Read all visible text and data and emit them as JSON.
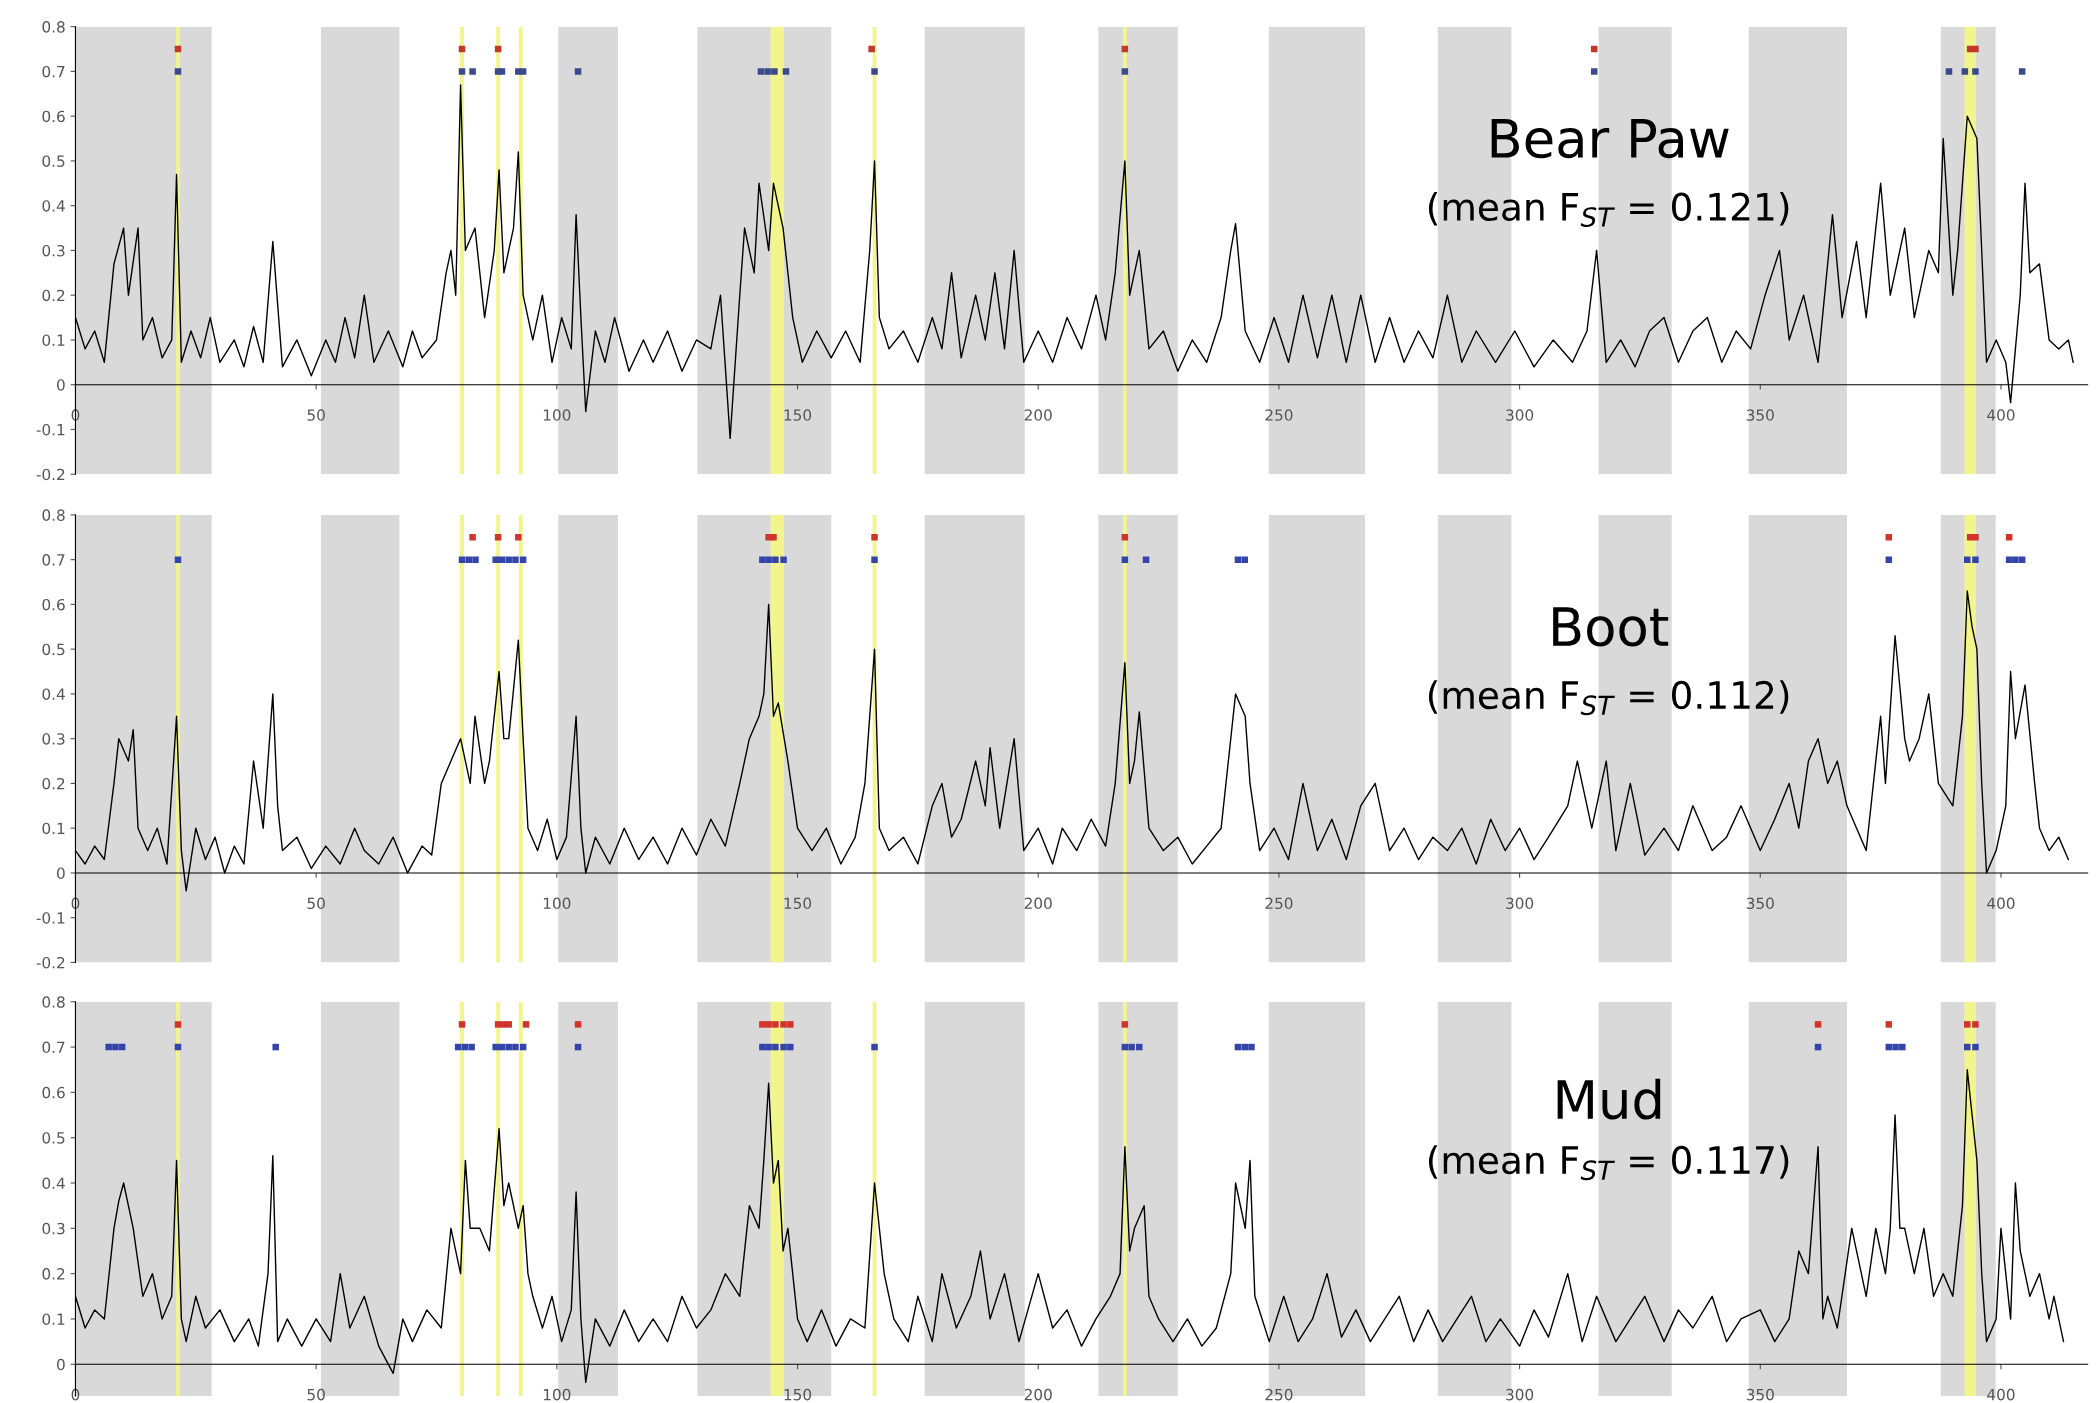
{
  "chart_data": [
    {
      "type": "line",
      "annotations": [
        "Bear Paw",
        "(mean F$_{ST}$ = 0.121)"
      ],
      "xlim": [
        0,
        418
      ],
      "ylim": [
        -0.2,
        0.8
      ],
      "xticks": [
        0,
        50,
        100,
        150,
        200,
        250,
        300,
        350,
        400
      ],
      "yticks": [
        -0.2,
        -0.1,
        0,
        0.1,
        0.2,
        0.3,
        0.4,
        0.5,
        0.6,
        0.7,
        0.8
      ],
      "grid": false,
      "legend": false,
      "bands": [
        {
          "axis": "x",
          "from": 0,
          "to": 28.3,
          "color": "#d9d9d9"
        },
        {
          "axis": "x",
          "from": 51,
          "to": 67.3,
          "color": "#d9d9d9"
        },
        {
          "axis": "x",
          "from": 100.3,
          "to": 112.7,
          "color": "#d9d9d9"
        },
        {
          "axis": "x",
          "from": 129.2,
          "to": 157,
          "color": "#d9d9d9"
        },
        {
          "axis": "x",
          "from": 176.4,
          "to": 197.2,
          "color": "#d9d9d9"
        },
        {
          "axis": "x",
          "from": 212.5,
          "to": 229,
          "color": "#d9d9d9"
        },
        {
          "axis": "x",
          "from": 247.9,
          "to": 267.9,
          "color": "#d9d9d9"
        },
        {
          "axis": "x",
          "from": 283,
          "to": 298.3,
          "color": "#d9d9d9"
        },
        {
          "axis": "x",
          "from": 316.4,
          "to": 331.6,
          "color": "#d9d9d9"
        },
        {
          "axis": "x",
          "from": 347.6,
          "to": 368,
          "color": "#d9d9d9"
        },
        {
          "axis": "x",
          "from": 387.5,
          "to": 398.9,
          "color": "#d9d9d9"
        },
        {
          "axis": "x",
          "from": 20.9,
          "to": 21.7,
          "color": "#f2f58c"
        },
        {
          "axis": "x",
          "from": 79.9,
          "to": 80.7,
          "color": "#f2f58c"
        },
        {
          "axis": "x",
          "from": 87.4,
          "to": 88.2,
          "color": "#f2f58c"
        },
        {
          "axis": "x",
          "from": 92.1,
          "to": 92.9,
          "color": "#f2f58c"
        },
        {
          "axis": "x",
          "from": 144.4,
          "to": 147.2,
          "color": "#f2f58c"
        },
        {
          "axis": "x",
          "from": 165.6,
          "to": 166.4,
          "color": "#f2f58c"
        },
        {
          "axis": "x",
          "from": 217.6,
          "to": 218.4,
          "color": "#f2f58c"
        },
        {
          "axis": "x",
          "from": 392.4,
          "to": 394.8,
          "color": "#f2f58c"
        }
      ],
      "series": [
        {
          "type": "line",
          "color": "#000000",
          "marker": "none",
          "line_style": "solid",
          "x": [
            0,
            2,
            4,
            6,
            8,
            10,
            11,
            13,
            14,
            16,
            18,
            20,
            21,
            22,
            24,
            26,
            28,
            30,
            33,
            35,
            37,
            39,
            41,
            43,
            46,
            49,
            52,
            54,
            56,
            58,
            60,
            62,
            65,
            68,
            70,
            72,
            75,
            77,
            78,
            79,
            80,
            81,
            83,
            85,
            87,
            88,
            89,
            91,
            92,
            93,
            95,
            97,
            99,
            101,
            103,
            104,
            105,
            106,
            108,
            110,
            112,
            115,
            118,
            120,
            123,
            126,
            129,
            132,
            134,
            136,
            138,
            139,
            141,
            142,
            144,
            145,
            147,
            149,
            151,
            154,
            157,
            160,
            163,
            165,
            166,
            167,
            169,
            172,
            175,
            178,
            180,
            182,
            184,
            187,
            189,
            191,
            193,
            195,
            197,
            200,
            203,
            206,
            209,
            212,
            214,
            216,
            218,
            219,
            221,
            223,
            226,
            229,
            232,
            235,
            238,
            240,
            241,
            243,
            246,
            249,
            252,
            255,
            258,
            261,
            264,
            267,
            270,
            273,
            276,
            279,
            282,
            285,
            288,
            291,
            295,
            299,
            303,
            307,
            311,
            314,
            316,
            318,
            321,
            324,
            327,
            330,
            333,
            336,
            339,
            342,
            345,
            348,
            351,
            354,
            356,
            359,
            362,
            365,
            367,
            370,
            372,
            375,
            377,
            380,
            382,
            385,
            387,
            388,
            390,
            391,
            393,
            395,
            397,
            399,
            401,
            402,
            404,
            405,
            406,
            408,
            410,
            412,
            414,
            415
          ],
          "values": [
            0.15,
            0.08,
            0.12,
            0.05,
            0.27,
            0.35,
            0.2,
            0.35,
            0.1,
            0.15,
            0.06,
            0.1,
            0.47,
            0.05,
            0.12,
            0.06,
            0.15,
            0.05,
            0.1,
            0.04,
            0.13,
            0.05,
            0.32,
            0.04,
            0.1,
            0.02,
            0.1,
            0.05,
            0.15,
            0.06,
            0.2,
            0.05,
            0.12,
            0.04,
            0.12,
            0.06,
            0.1,
            0.25,
            0.3,
            0.2,
            0.67,
            0.3,
            0.35,
            0.15,
            0.3,
            0.48,
            0.25,
            0.35,
            0.52,
            0.2,
            0.1,
            0.2,
            0.05,
            0.15,
            0.08,
            0.38,
            0.15,
            -0.06,
            0.12,
            0.05,
            0.15,
            0.03,
            0.1,
            0.05,
            0.12,
            0.03,
            0.1,
            0.08,
            0.2,
            -0.12,
            0.2,
            0.35,
            0.25,
            0.45,
            0.3,
            0.45,
            0.35,
            0.15,
            0.05,
            0.12,
            0.06,
            0.12,
            0.05,
            0.3,
            0.5,
            0.15,
            0.08,
            0.12,
            0.05,
            0.15,
            0.08,
            0.25,
            0.06,
            0.2,
            0.1,
            0.25,
            0.08,
            0.3,
            0.05,
            0.12,
            0.05,
            0.15,
            0.08,
            0.2,
            0.1,
            0.25,
            0.5,
            0.2,
            0.3,
            0.08,
            0.12,
            0.03,
            0.1,
            0.05,
            0.15,
            0.3,
            0.36,
            0.12,
            0.05,
            0.15,
            0.05,
            0.2,
            0.06,
            0.2,
            0.05,
            0.2,
            0.05,
            0.15,
            0.05,
            0.12,
            0.06,
            0.2,
            0.05,
            0.12,
            0.05,
            0.12,
            0.04,
            0.1,
            0.05,
            0.12,
            0.3,
            0.05,
            0.1,
            0.04,
            0.12,
            0.15,
            0.05,
            0.12,
            0.15,
            0.05,
            0.12,
            0.08,
            0.2,
            0.3,
            0.1,
            0.2,
            0.05,
            0.38,
            0.15,
            0.32,
            0.15,
            0.45,
            0.2,
            0.35,
            0.15,
            0.3,
            0.25,
            0.55,
            0.2,
            0.3,
            0.6,
            0.55,
            0.05,
            0.1,
            0.05,
            -0.04,
            0.2,
            0.45,
            0.25,
            0.27,
            0.1,
            0.08,
            0.1,
            0.05
          ]
        },
        {
          "type": "scatter",
          "color": "#c0392b",
          "marker": "square",
          "x": [
            21.3,
            80.3,
            87.8,
            165.4,
            218,
            315.5,
            393.6,
            394.7
          ],
          "values": [
            0.75,
            0.75,
            0.75,
            0.75,
            0.75,
            0.75,
            0.75,
            0.75
          ]
        },
        {
          "type": "scatter",
          "color": "#3a4a8a",
          "marker": "square",
          "x": [
            21.3,
            80.3,
            82.5,
            87.8,
            88.6,
            92,
            93,
            104.4,
            142.4,
            143.8,
            145.2,
            147.6,
            166,
            218,
            315.5,
            389.2,
            392.5,
            394.7,
            404.4
          ],
          "values": [
            0.7,
            0.7,
            0.7,
            0.7,
            0.7,
            0.7,
            0.7,
            0.7,
            0.7,
            0.7,
            0.7,
            0.7,
            0.7,
            0.7,
            0.7,
            0.7,
            0.7,
            0.7,
            0.7
          ]
        }
      ]
    },
    {
      "type": "line",
      "annotations": [
        "Boot",
        "(mean F$_{ST}$ = 0.112)"
      ],
      "xlim": [
        0,
        418
      ],
      "ylim": [
        -0.2,
        0.8
      ],
      "xticks": [
        0,
        50,
        100,
        150,
        200,
        250,
        300,
        350,
        400
      ],
      "yticks": [
        -0.2,
        -0.1,
        0,
        0.1,
        0.2,
        0.3,
        0.4,
        0.5,
        0.6,
        0.7,
        0.8
      ],
      "grid": false,
      "legend": false,
      "bands": [
        {
          "axis": "x",
          "from": 0,
          "to": 28.3,
          "color": "#d9d9d9"
        },
        {
          "axis": "x",
          "from": 51,
          "to": 67.3,
          "color": "#d9d9d9"
        },
        {
          "axis": "x",
          "from": 100.3,
          "to": 112.7,
          "color": "#d9d9d9"
        },
        {
          "axis": "x",
          "from": 129.2,
          "to": 157,
          "color": "#d9d9d9"
        },
        {
          "axis": "x",
          "from": 176.4,
          "to": 197.2,
          "color": "#d9d9d9"
        },
        {
          "axis": "x",
          "from": 212.5,
          "to": 229,
          "color": "#d9d9d9"
        },
        {
          "axis": "x",
          "from": 247.9,
          "to": 267.9,
          "color": "#d9d9d9"
        },
        {
          "axis": "x",
          "from": 283,
          "to": 298.3,
          "color": "#d9d9d9"
        },
        {
          "axis": "x",
          "from": 316.4,
          "to": 331.6,
          "color": "#d9d9d9"
        },
        {
          "axis": "x",
          "from": 347.6,
          "to": 368,
          "color": "#d9d9d9"
        },
        {
          "axis": "x",
          "from": 387.5,
          "to": 398.9,
          "color": "#d9d9d9"
        },
        {
          "axis": "x",
          "from": 20.9,
          "to": 21.7,
          "color": "#f2f58c"
        },
        {
          "axis": "x",
          "from": 79.9,
          "to": 80.7,
          "color": "#f2f58c"
        },
        {
          "axis": "x",
          "from": 87.4,
          "to": 88.2,
          "color": "#f2f58c"
        },
        {
          "axis": "x",
          "from": 92.1,
          "to": 92.9,
          "color": "#f2f58c"
        },
        {
          "axis": "x",
          "from": 144.4,
          "to": 147.2,
          "color": "#f2f58c"
        },
        {
          "axis": "x",
          "from": 165.6,
          "to": 166.4,
          "color": "#f2f58c"
        },
        {
          "axis": "x",
          "from": 217.6,
          "to": 218.4,
          "color": "#f2f58c"
        },
        {
          "axis": "x",
          "from": 392.4,
          "to": 394.8,
          "color": "#f2f58c"
        }
      ],
      "series": [
        {
          "type": "line",
          "color": "#000000",
          "marker": "none",
          "line_style": "solid",
          "x": [
            0,
            2,
            4,
            6,
            8,
            9,
            11,
            12,
            13,
            15,
            17,
            19,
            21,
            22,
            23,
            25,
            27,
            29,
            31,
            33,
            35,
            37,
            39,
            41,
            42,
            43,
            46,
            49,
            52,
            55,
            58,
            60,
            63,
            66,
            69,
            72,
            74,
            76,
            78,
            80,
            82,
            83,
            85,
            86,
            88,
            89,
            90,
            92,
            93,
            94,
            96,
            98,
            100,
            102,
            104,
            105,
            106,
            108,
            111,
            114,
            117,
            120,
            123,
            126,
            129,
            132,
            135,
            138,
            140,
            142,
            143,
            144,
            145,
            146,
            148,
            150,
            153,
            156,
            159,
            162,
            164,
            166,
            167,
            169,
            172,
            175,
            178,
            180,
            182,
            184,
            187,
            189,
            190,
            192,
            195,
            197,
            200,
            203,
            205,
            208,
            211,
            214,
            216,
            218,
            219,
            220,
            221,
            223,
            226,
            229,
            232,
            235,
            238,
            241,
            243,
            244,
            246,
            249,
            252,
            255,
            258,
            261,
            264,
            267,
            270,
            273,
            276,
            279,
            282,
            285,
            288,
            291,
            294,
            297,
            300,
            303,
            306,
            310,
            312,
            315,
            318,
            320,
            323,
            326,
            330,
            333,
            336,
            340,
            343,
            346,
            350,
            353,
            356,
            358,
            360,
            362,
            364,
            366,
            368,
            370,
            372,
            375,
            376,
            378,
            380,
            381,
            383,
            385,
            387,
            390,
            392,
            393,
            394,
            395,
            396,
            397,
            399,
            401,
            402,
            403,
            405,
            407,
            408,
            410,
            412,
            414
          ],
          "values": [
            0.05,
            0.02,
            0.06,
            0.03,
            0.2,
            0.3,
            0.25,
            0.32,
            0.1,
            0.05,
            0.1,
            0.02,
            0.35,
            0.05,
            -0.04,
            0.1,
            0.03,
            0.08,
            0.0,
            0.06,
            0.02,
            0.25,
            0.1,
            0.4,
            0.15,
            0.05,
            0.08,
            0.01,
            0.06,
            0.02,
            0.1,
            0.05,
            0.02,
            0.08,
            0.0,
            0.06,
            0.04,
            0.2,
            0.25,
            0.3,
            0.2,
            0.35,
            0.2,
            0.25,
            0.45,
            0.3,
            0.3,
            0.52,
            0.3,
            0.1,
            0.05,
            0.12,
            0.03,
            0.08,
            0.35,
            0.1,
            0.0,
            0.08,
            0.02,
            0.1,
            0.03,
            0.08,
            0.02,
            0.1,
            0.04,
            0.12,
            0.06,
            0.2,
            0.3,
            0.35,
            0.4,
            0.6,
            0.35,
            0.38,
            0.25,
            0.1,
            0.05,
            0.1,
            0.02,
            0.08,
            0.2,
            0.5,
            0.1,
            0.05,
            0.08,
            0.02,
            0.15,
            0.2,
            0.08,
            0.12,
            0.25,
            0.15,
            0.28,
            0.1,
            0.3,
            0.05,
            0.1,
            0.02,
            0.1,
            0.05,
            0.12,
            0.06,
            0.2,
            0.47,
            0.2,
            0.25,
            0.36,
            0.1,
            0.05,
            0.08,
            0.02,
            0.06,
            0.1,
            0.4,
            0.35,
            0.2,
            0.05,
            0.1,
            0.03,
            0.2,
            0.05,
            0.12,
            0.03,
            0.15,
            0.2,
            0.05,
            0.1,
            0.03,
            0.08,
            0.05,
            0.1,
            0.02,
            0.12,
            0.05,
            0.1,
            0.03,
            0.08,
            0.15,
            0.25,
            0.1,
            0.25,
            0.05,
            0.2,
            0.04,
            0.1,
            0.05,
            0.15,
            0.05,
            0.08,
            0.15,
            0.05,
            0.12,
            0.2,
            0.1,
            0.25,
            0.3,
            0.2,
            0.25,
            0.15,
            0.1,
            0.05,
            0.35,
            0.2,
            0.53,
            0.3,
            0.25,
            0.3,
            0.4,
            0.2,
            0.15,
            0.35,
            0.63,
            0.55,
            0.5,
            0.2,
            0.0,
            0.05,
            0.15,
            0.45,
            0.3,
            0.42,
            0.2,
            0.1,
            0.05,
            0.08,
            0.03
          ]
        },
        {
          "type": "scatter",
          "color": "#d0342c",
          "marker": "square",
          "x": [
            82.5,
            87.8,
            92,
            144,
            145,
            166,
            218,
            376.7,
            393.6,
            394.7,
            401.7
          ],
          "values": [
            0.75,
            0.75,
            0.75,
            0.75,
            0.75,
            0.75,
            0.75,
            0.75,
            0.75,
            0.75,
            0.75
          ]
        },
        {
          "type": "scatter",
          "color": "#3344aa",
          "marker": "square",
          "x": [
            21.3,
            80.3,
            81.7,
            83.1,
            87.3,
            88.6,
            90,
            91.4,
            93,
            142.7,
            144,
            145.4,
            147.1,
            166,
            218,
            222.4,
            241.5,
            242.9,
            376.7,
            393,
            394.7,
            401.7,
            403,
            404.4
          ],
          "values": [
            0.7,
            0.7,
            0.7,
            0.7,
            0.7,
            0.7,
            0.7,
            0.7,
            0.7,
            0.7,
            0.7,
            0.7,
            0.7,
            0.7,
            0.7,
            0.7,
            0.7,
            0.7,
            0.7,
            0.7,
            0.7,
            0.7,
            0.7,
            0.7
          ]
        }
      ]
    },
    {
      "type": "line",
      "annotations": [
        "Mud",
        "(mean F$_{ST}$ = 0.117)"
      ],
      "xlim": [
        0,
        418
      ],
      "ylim": [
        -0.07,
        0.8
      ],
      "xticks": [
        0,
        50,
        100,
        150,
        200,
        250,
        300,
        350,
        400
      ],
      "yticks": [
        0,
        0.1,
        0.2,
        0.3,
        0.4,
        0.5,
        0.6,
        0.7,
        0.8
      ],
      "grid": false,
      "legend": false,
      "bands": [
        {
          "axis": "x",
          "from": 0,
          "to": 28.3,
          "color": "#d9d9d9"
        },
        {
          "axis": "x",
          "from": 51,
          "to": 67.3,
          "color": "#d9d9d9"
        },
        {
          "axis": "x",
          "from": 100.3,
          "to": 112.7,
          "color": "#d9d9d9"
        },
        {
          "axis": "x",
          "from": 129.2,
          "to": 157,
          "color": "#d9d9d9"
        },
        {
          "axis": "x",
          "from": 176.4,
          "to": 197.2,
          "color": "#d9d9d9"
        },
        {
          "axis": "x",
          "from": 212.5,
          "to": 229,
          "color": "#d9d9d9"
        },
        {
          "axis": "x",
          "from": 247.9,
          "to": 267.9,
          "color": "#d9d9d9"
        },
        {
          "axis": "x",
          "from": 283,
          "to": 298.3,
          "color": "#d9d9d9"
        },
        {
          "axis": "x",
          "from": 316.4,
          "to": 331.6,
          "color": "#d9d9d9"
        },
        {
          "axis": "x",
          "from": 347.6,
          "to": 368,
          "color": "#d9d9d9"
        },
        {
          "axis": "x",
          "from": 387.5,
          "to": 398.9,
          "color": "#d9d9d9"
        },
        {
          "axis": "x",
          "from": 20.9,
          "to": 21.7,
          "color": "#f2f58c"
        },
        {
          "axis": "x",
          "from": 79.9,
          "to": 80.7,
          "color": "#f2f58c"
        },
        {
          "axis": "x",
          "from": 87.4,
          "to": 88.2,
          "color": "#f2f58c"
        },
        {
          "axis": "x",
          "from": 92.1,
          "to": 92.9,
          "color": "#f2f58c"
        },
        {
          "axis": "x",
          "from": 144.4,
          "to": 147.2,
          "color": "#f2f58c"
        },
        {
          "axis": "x",
          "from": 165.6,
          "to": 166.4,
          "color": "#f2f58c"
        },
        {
          "axis": "x",
          "from": 217.6,
          "to": 218.4,
          "color": "#f2f58c"
        },
        {
          "axis": "x",
          "from": 392.4,
          "to": 394.8,
          "color": "#f2f58c"
        }
      ],
      "series": [
        {
          "type": "line",
          "color": "#000000",
          "marker": "none",
          "line_style": "solid",
          "x": [
            0,
            2,
            4,
            6,
            8,
            9,
            10,
            12,
            14,
            16,
            18,
            20,
            21,
            22,
            23,
            25,
            27,
            30,
            33,
            36,
            38,
            40,
            41,
            42,
            44,
            47,
            50,
            53,
            55,
            57,
            60,
            63,
            66,
            68,
            70,
            73,
            76,
            78,
            80,
            81,
            82,
            84,
            86,
            88,
            89,
            90,
            92,
            93,
            94,
            95,
            97,
            99,
            101,
            103,
            104,
            105,
            106,
            108,
            111,
            114,
            117,
            120,
            123,
            126,
            129,
            132,
            135,
            138,
            140,
            142,
            143,
            144,
            145,
            146,
            147,
            148,
            150,
            152,
            155,
            158,
            161,
            164,
            166,
            168,
            170,
            173,
            175,
            178,
            180,
            183,
            186,
            188,
            190,
            193,
            196,
            200,
            203,
            206,
            209,
            212,
            215,
            217,
            218,
            219,
            220,
            222,
            223,
            225,
            228,
            231,
            234,
            237,
            240,
            241,
            243,
            244,
            245,
            248,
            251,
            254,
            257,
            260,
            263,
            266,
            269,
            272,
            275,
            278,
            281,
            284,
            287,
            290,
            293,
            296,
            300,
            303,
            306,
            310,
            313,
            316,
            320,
            323,
            326,
            330,
            333,
            336,
            340,
            343,
            346,
            350,
            353,
            356,
            358,
            360,
            362,
            363,
            364,
            366,
            369,
            372,
            374,
            376,
            377,
            378,
            379,
            380,
            382,
            384,
            386,
            388,
            390,
            392,
            393,
            394,
            395,
            396,
            397,
            399,
            400,
            402,
            403,
            404,
            406,
            408,
            410,
            411,
            413
          ],
          "values": [
            0.15,
            0.08,
            0.12,
            0.1,
            0.3,
            0.36,
            0.4,
            0.3,
            0.15,
            0.2,
            0.1,
            0.15,
            0.45,
            0.1,
            0.05,
            0.15,
            0.08,
            0.12,
            0.05,
            0.1,
            0.04,
            0.2,
            0.46,
            0.05,
            0.1,
            0.04,
            0.1,
            0.05,
            0.2,
            0.08,
            0.15,
            0.04,
            -0.02,
            0.1,
            0.05,
            0.12,
            0.08,
            0.3,
            0.2,
            0.45,
            0.3,
            0.3,
            0.25,
            0.52,
            0.35,
            0.4,
            0.3,
            0.35,
            0.2,
            0.15,
            0.08,
            0.15,
            0.05,
            0.12,
            0.38,
            0.1,
            -0.04,
            0.1,
            0.04,
            0.12,
            0.05,
            0.1,
            0.05,
            0.15,
            0.08,
            0.12,
            0.2,
            0.15,
            0.35,
            0.3,
            0.45,
            0.62,
            0.4,
            0.45,
            0.25,
            0.3,
            0.1,
            0.05,
            0.12,
            0.04,
            0.1,
            0.08,
            0.4,
            0.2,
            0.1,
            0.05,
            0.15,
            0.05,
            0.2,
            0.08,
            0.15,
            0.25,
            0.1,
            0.2,
            0.05,
            0.2,
            0.08,
            0.12,
            0.04,
            0.1,
            0.15,
            0.2,
            0.48,
            0.25,
            0.3,
            0.35,
            0.15,
            0.1,
            0.05,
            0.1,
            0.04,
            0.08,
            0.2,
            0.4,
            0.3,
            0.45,
            0.15,
            0.05,
            0.15,
            0.05,
            0.1,
            0.2,
            0.06,
            0.12,
            0.05,
            0.1,
            0.15,
            0.05,
            0.12,
            0.05,
            0.1,
            0.15,
            0.05,
            0.1,
            0.04,
            0.12,
            0.06,
            0.2,
            0.05,
            0.15,
            0.05,
            0.1,
            0.15,
            0.05,
            0.12,
            0.08,
            0.15,
            0.05,
            0.1,
            0.12,
            0.05,
            0.1,
            0.25,
            0.2,
            0.48,
            0.1,
            0.15,
            0.08,
            0.3,
            0.15,
            0.3,
            0.2,
            0.3,
            0.55,
            0.3,
            0.3,
            0.2,
            0.3,
            0.15,
            0.2,
            0.15,
            0.35,
            0.65,
            0.55,
            0.45,
            0.2,
            0.05,
            0.1,
            0.3,
            0.1,
            0.4,
            0.25,
            0.15,
            0.2,
            0.1,
            0.15,
            0.05
          ]
        },
        {
          "type": "scatter",
          "color": "#d0342c",
          "marker": "square",
          "x": [
            21.3,
            80.3,
            87.8,
            88.9,
            90,
            93.6,
            104.4,
            142.7,
            144,
            145.4,
            147.1,
            148.5,
            218,
            362,
            376.7,
            393,
            394.7
          ],
          "values": [
            0.75,
            0.75,
            0.75,
            0.75,
            0.75,
            0.75,
            0.75,
            0.75,
            0.75,
            0.75,
            0.75,
            0.75,
            0.75,
            0.75,
            0.75,
            0.75,
            0.75
          ]
        },
        {
          "type": "scatter",
          "color": "#3344aa",
          "marker": "square",
          "x": [
            6.9,
            8.3,
            9.7,
            21.3,
            41.6,
            79.5,
            80.9,
            82.3,
            87.3,
            88.6,
            90,
            91.4,
            93,
            104.4,
            142.7,
            144,
            145.4,
            147.1,
            148.5,
            166,
            218,
            219.4,
            221,
            241.5,
            242.9,
            244.3,
            362,
            376.7,
            378.1,
            379.5,
            393,
            394.7
          ],
          "values": [
            0.7,
            0.7,
            0.7,
            0.7,
            0.7,
            0.7,
            0.7,
            0.7,
            0.7,
            0.7,
            0.7,
            0.7,
            0.7,
            0.7,
            0.7,
            0.7,
            0.7,
            0.7,
            0.7,
            0.7,
            0.7,
            0.7,
            0.7,
            0.7,
            0.7,
            0.7,
            0.7,
            0.7,
            0.7,
            0.7,
            0.7,
            0.7
          ]
        }
      ]
    }
  ]
}
